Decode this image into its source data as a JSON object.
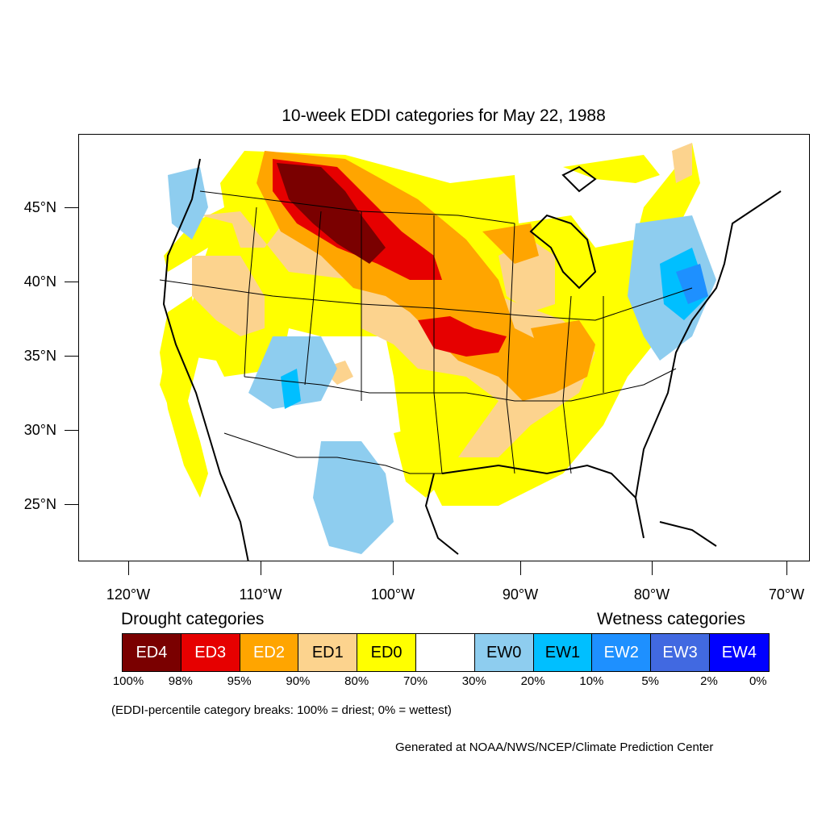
{
  "title": "10-week EDDI categories for May 22, 1988",
  "lat_labels": [
    "45°N",
    "40°N",
    "35°N",
    "30°N",
    "25°N"
  ],
  "lon_labels": [
    "120°W",
    "110°W",
    "100°W",
    "90°W",
    "80°W",
    "70°W"
  ],
  "drought_title": "Drought categories",
  "wetness_title": "Wetness categories",
  "legend": [
    {
      "label": "ED4",
      "color": "#7a0000",
      "text_color": "#ffffff"
    },
    {
      "label": "ED3",
      "color": "#e60000",
      "text_color": "#ffffff"
    },
    {
      "label": "ED2",
      "color": "#ffa500",
      "text_color": "#ffffff"
    },
    {
      "label": "ED1",
      "color": "#fcd38e",
      "text_color": "#000000"
    },
    {
      "label": "ED0",
      "color": "#ffff00",
      "text_color": "#000000"
    },
    {
      "label": "",
      "color": "#ffffff",
      "text_color": "#000000"
    },
    {
      "label": "EW0",
      "color": "#8ecdef",
      "text_color": "#000000"
    },
    {
      "label": "EW1",
      "color": "#00bfff",
      "text_color": "#000000"
    },
    {
      "label": "EW2",
      "color": "#1e90ff",
      "text_color": "#ffffff"
    },
    {
      "label": "EW3",
      "color": "#4169e1",
      "text_color": "#ffffff"
    },
    {
      "label": "EW4",
      "color": "#0000ff",
      "text_color": "#ffffff"
    }
  ],
  "percentiles": [
    "100%",
    "98%",
    "95%",
    "90%",
    "80%",
    "70%",
    "30%",
    "20%",
    "10%",
    "5%",
    "2%",
    "0%"
  ],
  "note": "(EDDI-percentile category breaks: 100% = driest; 0% = wettest)",
  "credit": "Generated at NOAA/NWS/NCEP/Climate Prediction Center"
}
